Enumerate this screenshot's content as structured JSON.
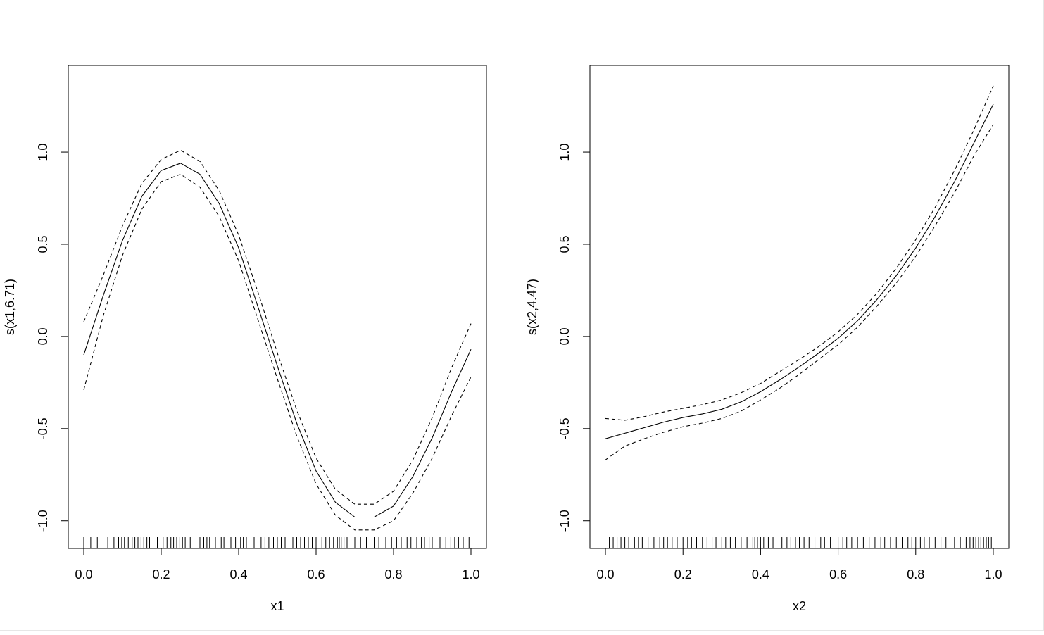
{
  "chart_data": [
    {
      "type": "line",
      "xlabel": "x1",
      "ylabel": "s(x1,6.71)",
      "xlim": [
        -0.04,
        1.04
      ],
      "ylim": [
        -1.15,
        1.47
      ],
      "xticks": [
        "0.0",
        "0.2",
        "0.4",
        "0.6",
        "0.8",
        "1.0"
      ],
      "yticks": [
        "-1.0",
        "-0.5",
        "0.0",
        "0.5",
        "1.0"
      ],
      "grid": false,
      "series": [
        {
          "role": "estimate",
          "style": "solid",
          "x": [
            0.0,
            0.05,
            0.1,
            0.15,
            0.2,
            0.25,
            0.3,
            0.35,
            0.4,
            0.45,
            0.5,
            0.55,
            0.6,
            0.65,
            0.7,
            0.75,
            0.8,
            0.85,
            0.9,
            0.95,
            1.0
          ],
          "y": [
            -0.1,
            0.22,
            0.52,
            0.76,
            0.9,
            0.94,
            0.88,
            0.72,
            0.48,
            0.16,
            -0.16,
            -0.47,
            -0.73,
            -0.9,
            -0.98,
            -0.98,
            -0.92,
            -0.76,
            -0.55,
            -0.3,
            -0.07
          ]
        },
        {
          "role": "upper-band",
          "style": "dashed",
          "x": [
            0.0,
            0.05,
            0.1,
            0.15,
            0.2,
            0.25,
            0.3,
            0.35,
            0.4,
            0.45,
            0.5,
            0.55,
            0.6,
            0.65,
            0.7,
            0.75,
            0.8,
            0.85,
            0.9,
            0.95,
            1.0
          ],
          "y": [
            0.08,
            0.33,
            0.6,
            0.83,
            0.96,
            1.01,
            0.95,
            0.79,
            0.55,
            0.24,
            -0.09,
            -0.4,
            -0.66,
            -0.83,
            -0.91,
            -0.91,
            -0.84,
            -0.67,
            -0.44,
            -0.17,
            0.07
          ]
        },
        {
          "role": "lower-band",
          "style": "dashed",
          "x": [
            0.0,
            0.05,
            0.1,
            0.15,
            0.2,
            0.25,
            0.3,
            0.35,
            0.4,
            0.45,
            0.5,
            0.55,
            0.6,
            0.65,
            0.7,
            0.75,
            0.8,
            0.85,
            0.9,
            0.95,
            1.0
          ],
          "y": [
            -0.29,
            0.11,
            0.44,
            0.69,
            0.84,
            0.88,
            0.81,
            0.65,
            0.41,
            0.09,
            -0.23,
            -0.54,
            -0.8,
            -0.97,
            -1.05,
            -1.05,
            -1.0,
            -0.85,
            -0.66,
            -0.43,
            -0.22
          ]
        }
      ],
      "rug": [
        0.0,
        0.018,
        0.035,
        0.05,
        0.062,
        0.078,
        0.09,
        0.098,
        0.105,
        0.115,
        0.125,
        0.132,
        0.14,
        0.148,
        0.155,
        0.163,
        0.17,
        0.19,
        0.205,
        0.215,
        0.225,
        0.232,
        0.24,
        0.248,
        0.255,
        0.262,
        0.275,
        0.29,
        0.3,
        0.31,
        0.318,
        0.325,
        0.34,
        0.355,
        0.362,
        0.37,
        0.38,
        0.392,
        0.405,
        0.412,
        0.42,
        0.44,
        0.45,
        0.458,
        0.468,
        0.478,
        0.49,
        0.5,
        0.51,
        0.52,
        0.53,
        0.54,
        0.55,
        0.56,
        0.57,
        0.58,
        0.59,
        0.6,
        0.615,
        0.625,
        0.635,
        0.645,
        0.655,
        0.66,
        0.665,
        0.672,
        0.68,
        0.69,
        0.7,
        0.715,
        0.73,
        0.75,
        0.762,
        0.78,
        0.795,
        0.808,
        0.82,
        0.835,
        0.845,
        0.86,
        0.872,
        0.88,
        0.892,
        0.9,
        0.91,
        0.92,
        0.935,
        0.948,
        0.958,
        0.968,
        0.98,
        0.995
      ]
    },
    {
      "type": "line",
      "xlabel": "x2",
      "ylabel": "s(x2,4.47)",
      "xlim": [
        -0.04,
        1.04
      ],
      "ylim": [
        -1.15,
        1.47
      ],
      "xticks": [
        "0.0",
        "0.2",
        "0.4",
        "0.6",
        "0.8",
        "1.0"
      ],
      "yticks": [
        "-1.0",
        "-0.5",
        "0.0",
        "0.5",
        "1.0"
      ],
      "grid": false,
      "series": [
        {
          "role": "estimate",
          "style": "solid",
          "x": [
            0.0,
            0.05,
            0.1,
            0.15,
            0.2,
            0.25,
            0.3,
            0.35,
            0.4,
            0.45,
            0.5,
            0.55,
            0.6,
            0.65,
            0.7,
            0.75,
            0.8,
            0.85,
            0.9,
            0.95,
            1.0
          ],
          "y": [
            -0.555,
            -0.525,
            -0.495,
            -0.465,
            -0.44,
            -0.42,
            -0.395,
            -0.355,
            -0.3,
            -0.235,
            -0.165,
            -0.09,
            -0.01,
            0.085,
            0.2,
            0.33,
            0.48,
            0.65,
            0.84,
            1.05,
            1.26
          ]
        },
        {
          "role": "upper-band",
          "style": "dashed",
          "x": [
            0.0,
            0.05,
            0.1,
            0.15,
            0.2,
            0.25,
            0.3,
            0.35,
            0.4,
            0.45,
            0.5,
            0.55,
            0.6,
            0.65,
            0.7,
            0.75,
            0.8,
            0.85,
            0.9,
            0.95,
            1.0
          ],
          "y": [
            -0.445,
            -0.455,
            -0.435,
            -0.41,
            -0.39,
            -0.37,
            -0.345,
            -0.305,
            -0.255,
            -0.19,
            -0.125,
            -0.055,
            0.025,
            0.12,
            0.235,
            0.37,
            0.525,
            0.7,
            0.9,
            1.12,
            1.36
          ]
        },
        {
          "role": "lower-band",
          "style": "dashed",
          "x": [
            0.0,
            0.05,
            0.1,
            0.15,
            0.2,
            0.25,
            0.3,
            0.35,
            0.4,
            0.45,
            0.5,
            0.55,
            0.6,
            0.65,
            0.7,
            0.75,
            0.8,
            0.85,
            0.9,
            0.95,
            1.0
          ],
          "y": [
            -0.67,
            -0.595,
            -0.555,
            -0.52,
            -0.49,
            -0.47,
            -0.445,
            -0.405,
            -0.345,
            -0.28,
            -0.205,
            -0.125,
            -0.045,
            0.05,
            0.165,
            0.29,
            0.435,
            0.6,
            0.78,
            0.98,
            1.15
          ]
        }
      ],
      "rug": [
        0.01,
        0.02,
        0.03,
        0.04,
        0.05,
        0.06,
        0.075,
        0.085,
        0.095,
        0.11,
        0.125,
        0.14,
        0.15,
        0.16,
        0.172,
        0.185,
        0.2,
        0.212,
        0.222,
        0.235,
        0.25,
        0.262,
        0.275,
        0.285,
        0.3,
        0.31,
        0.322,
        0.335,
        0.35,
        0.365,
        0.38,
        0.385,
        0.392,
        0.4,
        0.408,
        0.42,
        0.432,
        0.455,
        0.468,
        0.478,
        0.49,
        0.5,
        0.512,
        0.525,
        0.54,
        0.555,
        0.565,
        0.58,
        0.6,
        0.612,
        0.622,
        0.635,
        0.65,
        0.665,
        0.68,
        0.695,
        0.71,
        0.72,
        0.735,
        0.75,
        0.765,
        0.78,
        0.79,
        0.8,
        0.812,
        0.822,
        0.835,
        0.85,
        0.865,
        0.878,
        0.9,
        0.915,
        0.93,
        0.94,
        0.948,
        0.955,
        0.962,
        0.968,
        0.975,
        0.982,
        0.988,
        0.995
      ]
    }
  ]
}
